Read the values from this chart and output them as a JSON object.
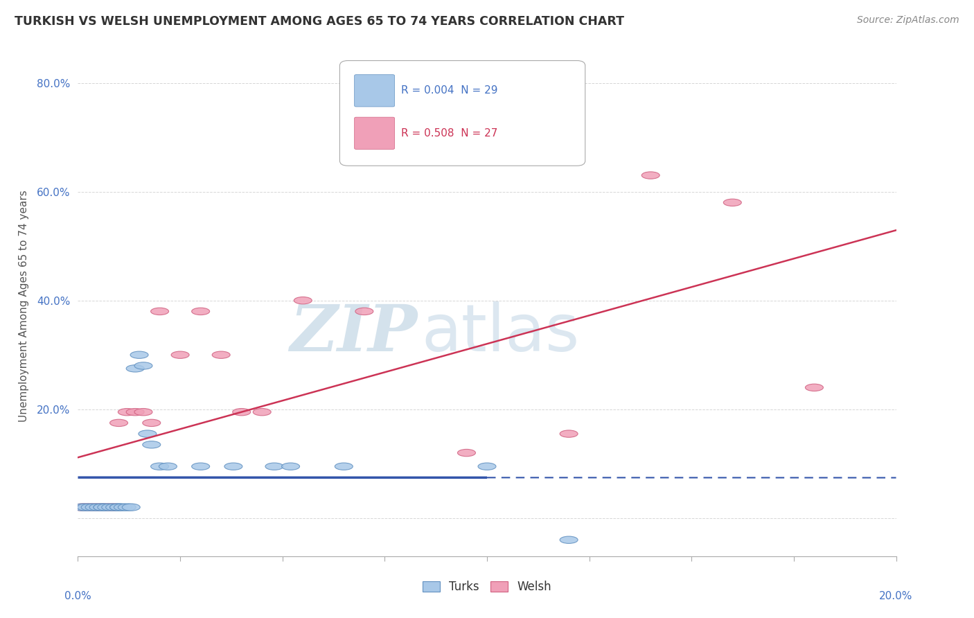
{
  "title": "TURKISH VS WELSH UNEMPLOYMENT AMONG AGES 65 TO 74 YEARS CORRELATION CHART",
  "source": "Source: ZipAtlas.com",
  "ylabel": "Unemployment Among Ages 65 to 74 years",
  "xmin": 0.0,
  "xmax": 0.2,
  "ymin": -0.07,
  "ymax": 0.85,
  "turks_color": "#a8c8e8",
  "welsh_color": "#f0a0b8",
  "turks_edge_color": "#6090c0",
  "welsh_edge_color": "#d06080",
  "turks_line_color": "#3355aa",
  "welsh_line_color": "#cc3355",
  "turks_R": 0.004,
  "turks_N": 29,
  "welsh_R": 0.508,
  "welsh_N": 27,
  "background_color": "#ffffff",
  "grid_color": "#cccccc",
  "watermark_zip_color": "#c5d8ea",
  "watermark_atlas_color": "#c8d8e8",
  "turks_x": [
    0.001,
    0.002,
    0.003,
    0.004,
    0.005,
    0.006,
    0.006,
    0.007,
    0.008,
    0.009,
    0.01,
    0.01,
    0.011,
    0.012,
    0.013,
    0.014,
    0.015,
    0.016,
    0.017,
    0.018,
    0.02,
    0.022,
    0.03,
    0.038,
    0.048,
    0.052,
    0.065,
    0.1,
    0.12
  ],
  "turks_y": [
    0.02,
    0.02,
    0.02,
    0.02,
    0.02,
    0.02,
    0.02,
    0.02,
    0.02,
    0.02,
    0.02,
    0.02,
    0.02,
    0.02,
    0.02,
    0.275,
    0.3,
    0.28,
    0.155,
    0.135,
    0.095,
    0.095,
    0.095,
    0.095,
    0.095,
    0.095,
    0.095,
    0.095,
    -0.04
  ],
  "welsh_x": [
    0.001,
    0.002,
    0.003,
    0.004,
    0.005,
    0.006,
    0.007,
    0.008,
    0.009,
    0.01,
    0.012,
    0.014,
    0.016,
    0.018,
    0.02,
    0.025,
    0.03,
    0.035,
    0.04,
    0.045,
    0.055,
    0.07,
    0.095,
    0.12,
    0.14,
    0.16,
    0.18
  ],
  "welsh_y": [
    0.02,
    0.02,
    0.02,
    0.02,
    0.02,
    0.02,
    0.02,
    0.02,
    0.02,
    0.175,
    0.195,
    0.195,
    0.195,
    0.175,
    0.38,
    0.3,
    0.38,
    0.3,
    0.195,
    0.195,
    0.4,
    0.38,
    0.12,
    0.155,
    0.63,
    0.58,
    0.24
  ],
  "turks_line_x": [
    0.0,
    0.2
  ],
  "turks_line_y": [
    0.022,
    0.022
  ],
  "ytick_vals": [
    0.0,
    0.2,
    0.4,
    0.6,
    0.8
  ],
  "ytick_labels": [
    "",
    "20.0%",
    "40.0%",
    "60.0%",
    "80.0%"
  ]
}
